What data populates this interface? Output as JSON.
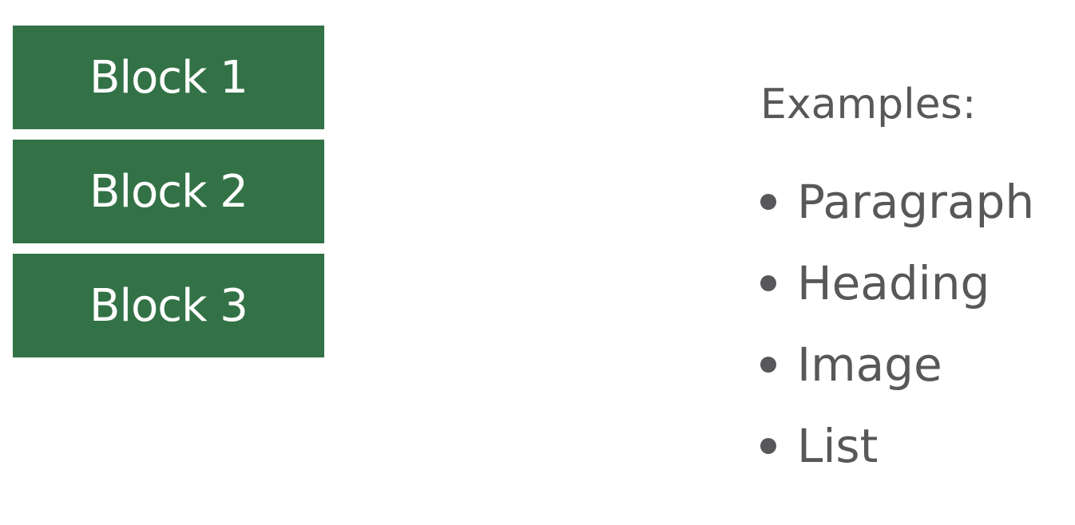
{
  "blocks": [
    {
      "label": "Block 1"
    },
    {
      "label": "Block 2"
    },
    {
      "label": "Block 3"
    }
  ],
  "examples": {
    "title": "Examples:",
    "items": [
      "Paragraph",
      "Heading",
      "Image",
      "List"
    ]
  },
  "colors": {
    "block_fill": "#337246",
    "block_text": "#ffffff",
    "examples_text": "#58585b"
  }
}
